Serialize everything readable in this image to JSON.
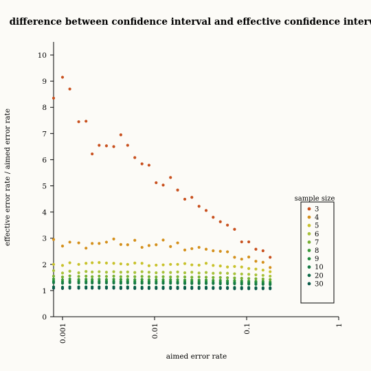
{
  "chart_data": {
    "type": "scatter",
    "title": "difference between confidence interval and effective confidence interval",
    "xlabel": "aimed error rate",
    "ylabel": "effective error rate / aimed error rate",
    "xscale": "log",
    "xlim": [
      0.0008,
      1
    ],
    "ylim": [
      0,
      10.5
    ],
    "x_ticks": [
      0.001,
      0.01,
      0.1,
      1
    ],
    "x_tick_labels": [
      "0.001",
      "0.01",
      "0.1",
      "1"
    ],
    "y_ticks": [
      0,
      1,
      2,
      3,
      4,
      5,
      6,
      7,
      8,
      9,
      10
    ],
    "y_tick_labels": [
      "0",
      "1",
      "2",
      "3",
      "4",
      "5",
      "6",
      "7",
      "8",
      "9",
      "10"
    ],
    "grid": false,
    "legend_title": "sample size",
    "legend_placement": "right",
    "x": [
      0.0008,
      0.001,
      0.0012,
      0.0015,
      0.0018,
      0.0021,
      0.0025,
      0.003,
      0.0036,
      0.0043,
      0.0051,
      0.0061,
      0.0073,
      0.0087,
      0.0104,
      0.0124,
      0.0149,
      0.0178,
      0.0213,
      0.0254,
      0.0304,
      0.0363,
      0.0433,
      0.0518,
      0.0619,
      0.0739,
      0.0883,
      0.1055,
      0.126,
      0.1506,
      0.18
    ],
    "series": [
      {
        "name": "3",
        "color": "#c8501e",
        "values": [
          8.35,
          9.15,
          8.7,
          7.45,
          7.47,
          6.22,
          6.55,
          6.53,
          6.5,
          6.95,
          6.55,
          6.08,
          5.84,
          5.79,
          5.12,
          5.03,
          5.32,
          4.84,
          4.49,
          4.56,
          4.22,
          4.06,
          3.8,
          3.63,
          3.5,
          3.34,
          2.86,
          2.86,
          2.58,
          2.52,
          2.27
        ]
      },
      {
        "name": "4",
        "color": "#d4901c",
        "values": [
          2.95,
          2.7,
          2.85,
          2.82,
          2.62,
          2.8,
          2.8,
          2.85,
          2.97,
          2.76,
          2.75,
          2.92,
          2.65,
          2.72,
          2.75,
          2.93,
          2.68,
          2.82,
          2.55,
          2.6,
          2.65,
          2.58,
          2.52,
          2.5,
          2.48,
          2.27,
          2.2,
          2.28,
          2.12,
          2.08,
          1.88
        ]
      },
      {
        "name": "5",
        "color": "#c8c22c",
        "values": [
          2.0,
          1.96,
          2.06,
          2.0,
          2.04,
          2.06,
          2.07,
          2.05,
          2.04,
          2.02,
          2.0,
          2.05,
          2.04,
          1.95,
          1.97,
          1.98,
          2.0,
          2.0,
          2.03,
          1.98,
          1.97,
          2.04,
          1.96,
          1.94,
          1.9,
          1.92,
          1.9,
          1.84,
          1.82,
          1.78,
          1.72
        ]
      },
      {
        "name": "6",
        "color": "#a8c23a",
        "values": [
          1.76,
          1.67,
          1.74,
          1.68,
          1.73,
          1.71,
          1.72,
          1.7,
          1.72,
          1.7,
          1.71,
          1.69,
          1.72,
          1.7,
          1.68,
          1.7,
          1.69,
          1.71,
          1.68,
          1.7,
          1.67,
          1.69,
          1.66,
          1.67,
          1.66,
          1.64,
          1.63,
          1.62,
          1.6,
          1.58,
          1.55
        ]
      },
      {
        "name": "7",
        "color": "#78b032",
        "values": [
          1.55,
          1.52,
          1.56,
          1.54,
          1.55,
          1.53,
          1.55,
          1.54,
          1.55,
          1.53,
          1.54,
          1.53,
          1.54,
          1.53,
          1.52,
          1.53,
          1.52,
          1.53,
          1.52,
          1.51,
          1.52,
          1.51,
          1.5,
          1.5,
          1.49,
          1.48,
          1.47,
          1.46,
          1.45,
          1.44,
          1.42
        ]
      },
      {
        "name": "8",
        "color": "#3c9a3a",
        "values": [
          1.44,
          1.41,
          1.44,
          1.42,
          1.43,
          1.42,
          1.43,
          1.42,
          1.43,
          1.42,
          1.42,
          1.41,
          1.42,
          1.41,
          1.41,
          1.41,
          1.41,
          1.41,
          1.4,
          1.4,
          1.4,
          1.4,
          1.39,
          1.39,
          1.38,
          1.38,
          1.37,
          1.36,
          1.35,
          1.35,
          1.33
        ]
      },
      {
        "name": "9",
        "color": "#1e8a3c",
        "values": [
          1.36,
          1.34,
          1.36,
          1.35,
          1.35,
          1.35,
          1.35,
          1.35,
          1.35,
          1.34,
          1.35,
          1.34,
          1.34,
          1.34,
          1.34,
          1.34,
          1.34,
          1.33,
          1.33,
          1.33,
          1.33,
          1.33,
          1.32,
          1.32,
          1.32,
          1.31,
          1.31,
          1.3,
          1.3,
          1.29,
          1.28
        ]
      },
      {
        "name": "10",
        "color": "#157a44",
        "values": [
          1.3,
          1.28,
          1.3,
          1.29,
          1.29,
          1.29,
          1.29,
          1.29,
          1.29,
          1.28,
          1.29,
          1.28,
          1.28,
          1.28,
          1.28,
          1.28,
          1.28,
          1.28,
          1.27,
          1.27,
          1.27,
          1.27,
          1.27,
          1.26,
          1.26,
          1.26,
          1.25,
          1.25,
          1.24,
          1.24,
          1.23
        ]
      },
      {
        "name": "20",
        "color": "#0e6a48",
        "values": [
          1.14,
          1.13,
          1.14,
          1.14,
          1.14,
          1.14,
          1.14,
          1.14,
          1.14,
          1.13,
          1.14,
          1.13,
          1.13,
          1.13,
          1.13,
          1.13,
          1.13,
          1.13,
          1.13,
          1.13,
          1.13,
          1.13,
          1.12,
          1.12,
          1.12,
          1.12,
          1.12,
          1.12,
          1.11,
          1.11,
          1.11
        ]
      },
      {
        "name": "30",
        "color": "#0a5a4a",
        "values": [
          1.09,
          1.08,
          1.09,
          1.09,
          1.09,
          1.09,
          1.09,
          1.09,
          1.09,
          1.08,
          1.09,
          1.08,
          1.08,
          1.08,
          1.08,
          1.08,
          1.08,
          1.08,
          1.08,
          1.08,
          1.08,
          1.08,
          1.08,
          1.08,
          1.08,
          1.07,
          1.07,
          1.07,
          1.07,
          1.07,
          1.07
        ]
      }
    ]
  }
}
